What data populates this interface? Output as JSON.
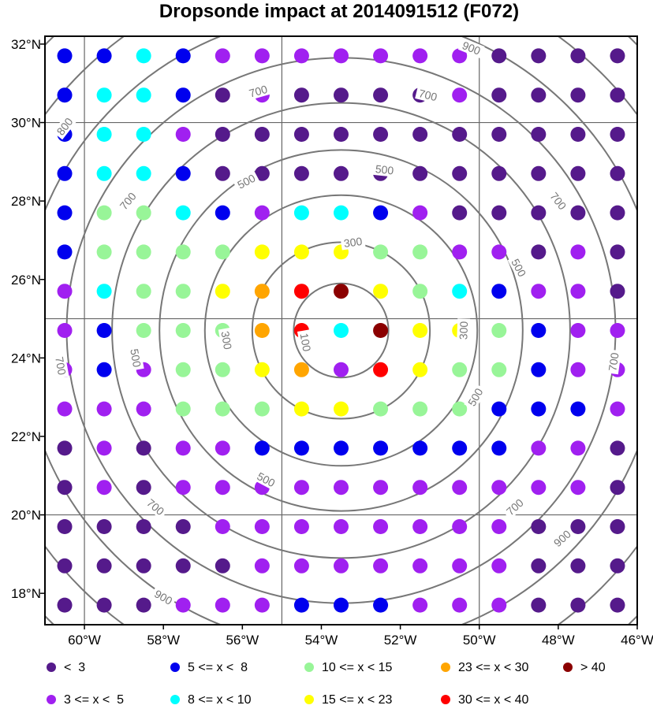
{
  "chart_data": {
    "type": "scatter",
    "title": "Dropsonde impact at 2014091512 (F072)",
    "x_ticks": [
      "60°W",
      "58°W",
      "56°W",
      "54°W",
      "52°W",
      "50°W",
      "48°W",
      "46°W"
    ],
    "y_ticks": [
      "32°N",
      "30°N",
      "28°N",
      "26°N",
      "24°N",
      "22°N",
      "20°N",
      "18°N"
    ],
    "xlim": [
      -61,
      -46
    ],
    "ylim": [
      17.2,
      32.2
    ],
    "gridlines_lon": [
      -60,
      -55,
      -50
    ],
    "gridlines_lat": [
      30,
      25,
      20
    ],
    "point_lons": [
      -60.5,
      -59.5,
      -58.5,
      -57.5,
      -56.5,
      -55.5,
      -54.5,
      -53.5,
      -52.5,
      -51.5,
      -50.5,
      -49.5,
      -48.5,
      -47.5,
      -46.5
    ],
    "point_lats": [
      31.7,
      30.7,
      29.7,
      28.7,
      27.7,
      26.7,
      25.7,
      24.7,
      23.7,
      22.7,
      21.7,
      20.7,
      19.7,
      18.7,
      17.7
    ],
    "categories": [
      {
        "code": "a",
        "label": "<  3",
        "color": "#551a8b"
      },
      {
        "code": "b",
        "label": "3 <= x <  5",
        "color": "#a020f0"
      },
      {
        "code": "c",
        "label": "5 <= x <  8",
        "color": "#0000ee"
      },
      {
        "code": "d",
        "label": "8 <= x < 10",
        "color": "#00ffff"
      },
      {
        "code": "e",
        "label": "10 <= x < 15",
        "color": "#98f598"
      },
      {
        "code": "f",
        "label": "15 <= x < 23",
        "color": "#ffff00"
      },
      {
        "code": "g",
        "label": "23 <= x < 30",
        "color": "#ffa500"
      },
      {
        "code": "h",
        "label": "30 <= x < 40",
        "color": "#ff0000"
      },
      {
        "code": "i",
        "label": "> 40",
        "color": "#8b0000"
      }
    ],
    "grid_rows": [
      "ccdcbbbbbbbaaaa",
      "cddcabaaaabaaaa",
      "cddbaaaaaaaaaaa",
      "cddcaaaaaaaaaaa",
      "ceedcbddcbaaaaa",
      "ceeeefffeebbaba",
      "bdeefghifedcbba",
      "bceeeghdiffecbb",
      "bcbeefgbhfeecbb",
      "bbbeeeffeeecccb",
      "ababbcccccccbba",
      "ababbbbbbbbbbba",
      "aaaabbbbbbbbaaa",
      "aaaaabbbbbbbaaa",
      "aaabbbcccbbbaaa"
    ],
    "contour_center": {
      "lon": -53.5,
      "lat": 24.7
    },
    "contour_radii": [
      1.2,
      2.25,
      3.45,
      4.6,
      5.8,
      6.95,
      8.1,
      9.3,
      10.45
    ],
    "contour_labels": [
      {
        "text": "100",
        "lon": -54.4,
        "lat": 24.4,
        "angle": 80
      },
      {
        "text": "300",
        "lon": -53.2,
        "lat": 26.95,
        "angle": -8
      },
      {
        "text": "300",
        "lon": -56.4,
        "lat": 24.45,
        "angle": 80
      },
      {
        "text": "300",
        "lon": -50.4,
        "lat": 24.7,
        "angle": -88
      },
      {
        "text": "500",
        "lon": -52.4,
        "lat": 28.8,
        "angle": 6
      },
      {
        "text": "500",
        "lon": -55.9,
        "lat": 28.5,
        "angle": -28
      },
      {
        "text": "500",
        "lon": -58.7,
        "lat": 24.0,
        "angle": 80
      },
      {
        "text": "500",
        "lon": -49.0,
        "lat": 26.3,
        "angle": 62
      },
      {
        "text": "500",
        "lon": -50.1,
        "lat": 23.0,
        "angle": -60
      },
      {
        "text": "500",
        "lon": -55.4,
        "lat": 20.9,
        "angle": 28
      },
      {
        "text": "700",
        "lon": -55.6,
        "lat": 30.8,
        "angle": -16
      },
      {
        "text": "700",
        "lon": -51.3,
        "lat": 30.7,
        "angle": 14
      },
      {
        "text": "700",
        "lon": -58.9,
        "lat": 28.0,
        "angle": -50
      },
      {
        "text": "700",
        "lon": -48.0,
        "lat": 28.0,
        "angle": 52
      },
      {
        "text": "700",
        "lon": -60.6,
        "lat": 23.8,
        "angle": 80
      },
      {
        "text": "700",
        "lon": -46.6,
        "lat": 23.9,
        "angle": -82
      },
      {
        "text": "700",
        "lon": -58.2,
        "lat": 20.2,
        "angle": 40
      },
      {
        "text": "700",
        "lon": -49.1,
        "lat": 20.2,
        "angle": -42
      },
      {
        "text": "800",
        "lon": -60.5,
        "lat": 29.9,
        "angle": -52
      },
      {
        "text": "900",
        "lon": -50.2,
        "lat": 31.9,
        "angle": 22
      },
      {
        "text": "900",
        "lon": -47.9,
        "lat": 19.4,
        "angle": -42
      },
      {
        "text": "900",
        "lon": -58.0,
        "lat": 17.9,
        "angle": 30
      }
    ]
  }
}
